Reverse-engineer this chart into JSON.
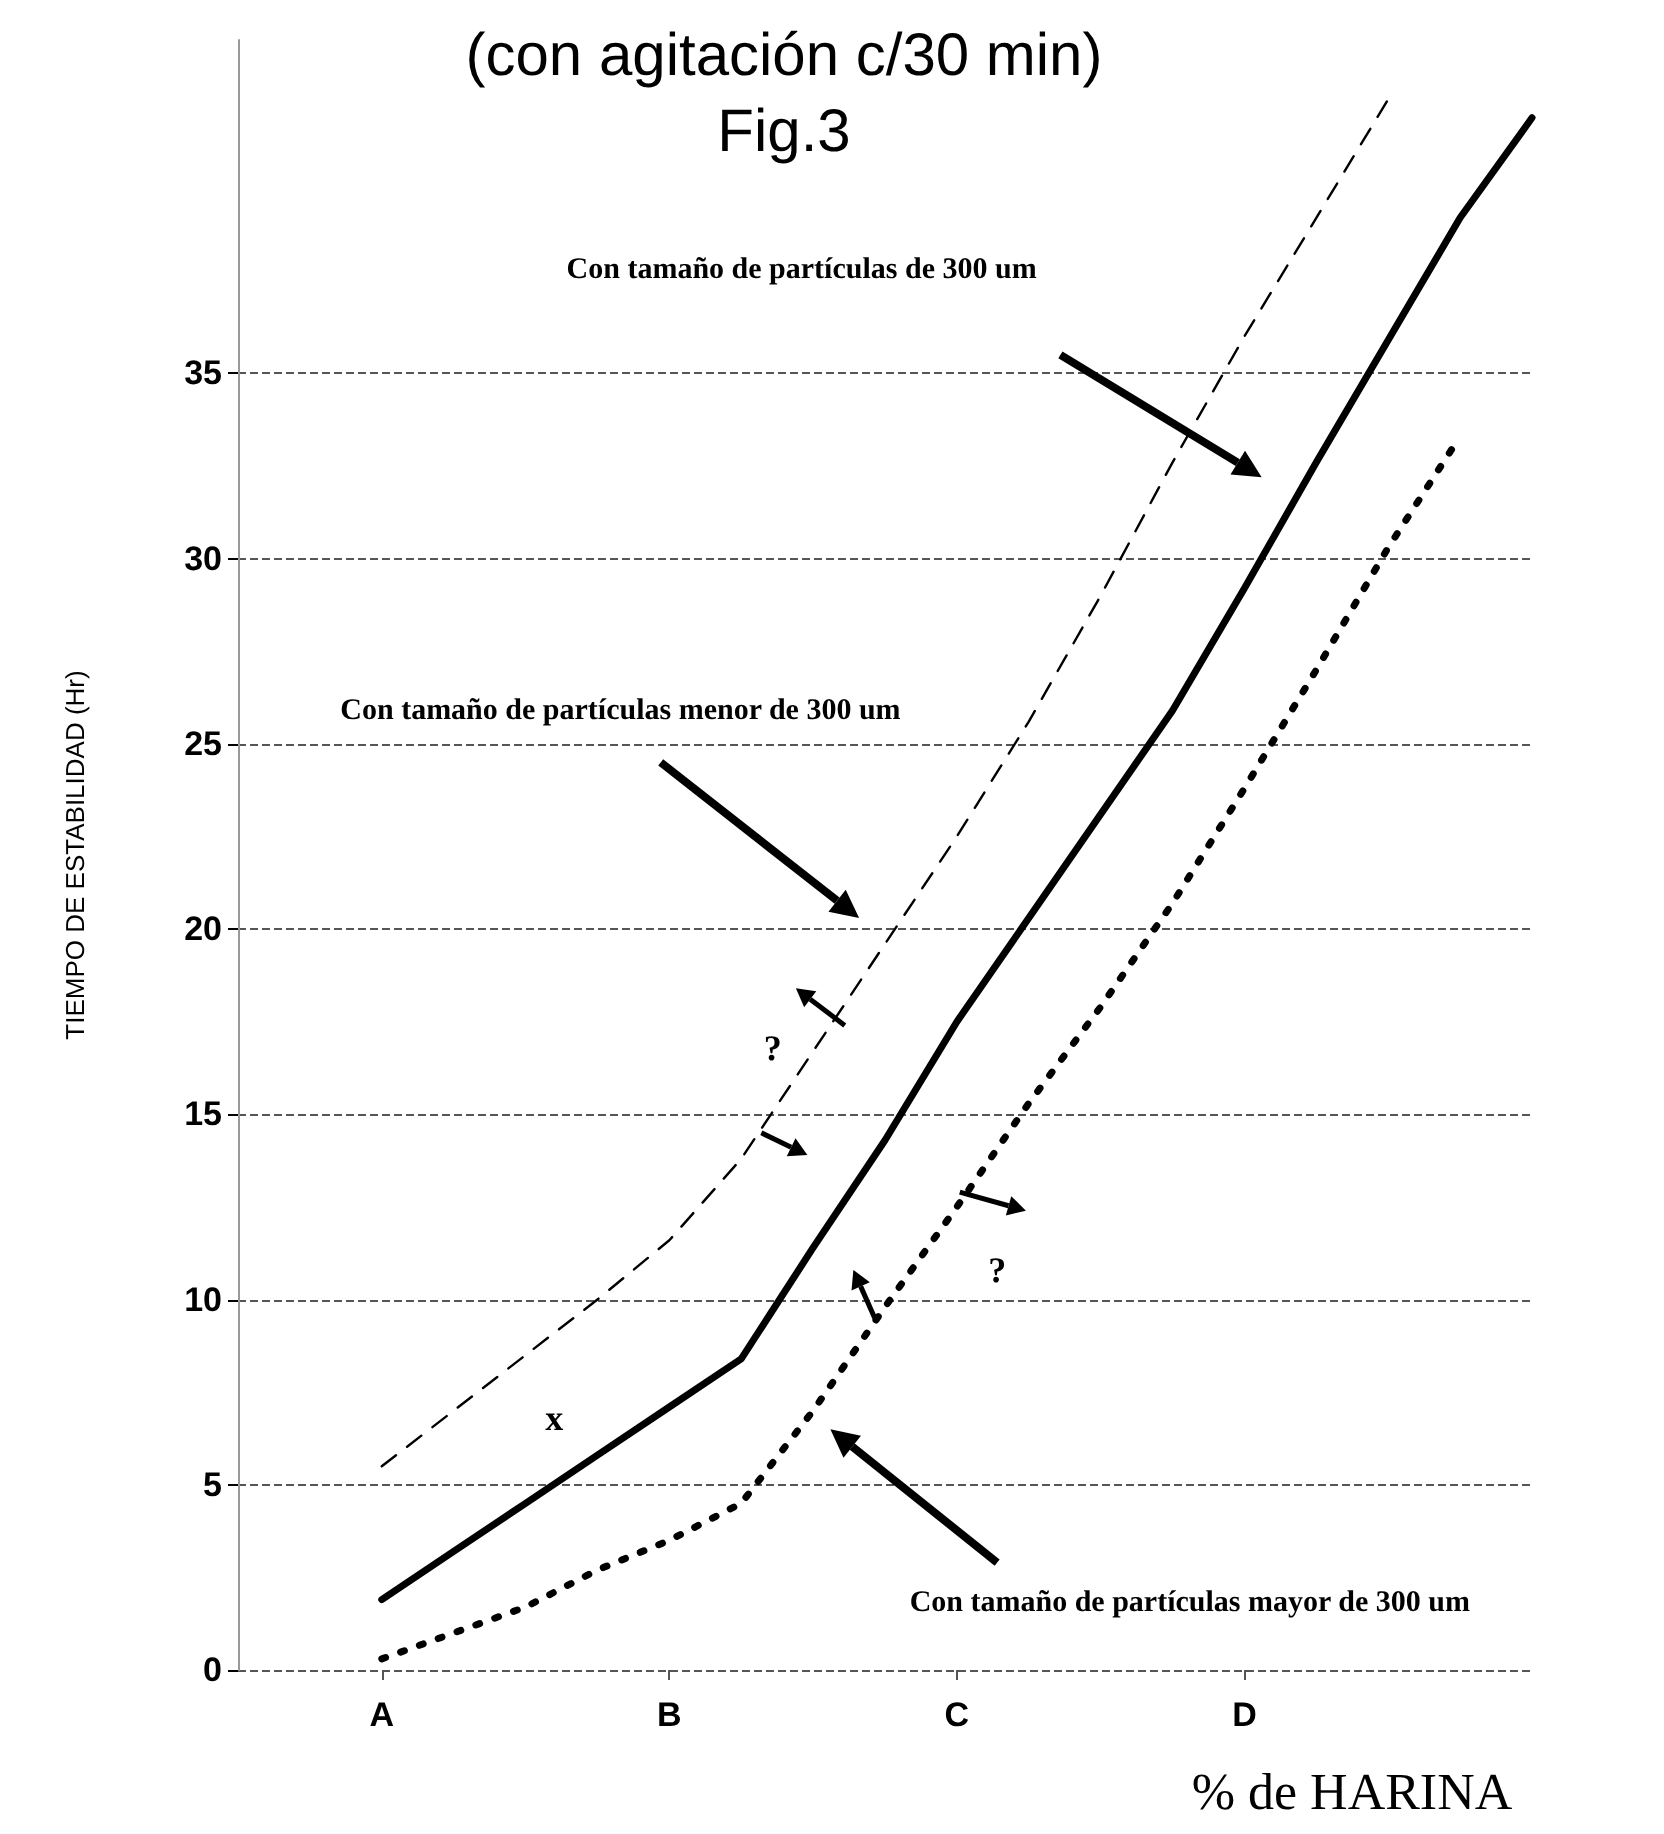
{
  "chart_data": {
    "type": "line",
    "title": "(con agitación c/30 min)",
    "subtitle": "Fig.3",
    "xlabel": "% de HARINA",
    "ylabel": "TIEMPO DE ESTABILIDAD (Hr)",
    "categories": [
      null,
      null,
      "A",
      null,
      null,
      null,
      "B",
      null,
      null,
      null,
      "C",
      null,
      null,
      null,
      "D",
      null,
      null,
      null,
      null
    ],
    "ylim": [
      0,
      44
    ],
    "yticks": [
      0,
      5,
      10,
      15,
      20,
      25,
      30,
      35
    ],
    "grid": "y",
    "marker": "none",
    "series": [
      {
        "color": "#000000",
        "line_style": "solid",
        "values": [
          null,
          null,
          1.9,
          3.2,
          4.5,
          5.8,
          7.1,
          8.4,
          11.4,
          14.3,
          17.5,
          20.3,
          23.1,
          25.9,
          29.2,
          32.6,
          35.9,
          39.2,
          41.9
        ]
      },
      {
        "color": "#000000",
        "line_style": "dashed",
        "values": [
          null,
          null,
          5.5,
          7.0,
          8.5,
          10.0,
          11.6,
          13.8,
          16.7,
          19.6,
          22.5,
          25.6,
          29.0,
          32.6,
          36.0,
          39.2,
          42.4,
          null,
          null
        ]
      },
      {
        "color": "#000000",
        "line_style": "dotted",
        "values": [
          null,
          null,
          0.3,
          1.0,
          1.7,
          2.7,
          3.5,
          4.5,
          7.0,
          9.8,
          12.5,
          15.3,
          17.9,
          20.7,
          23.8,
          27.0,
          30.3,
          33.3,
          null
        ]
      }
    ],
    "annotations": [
      "Con tamaño de partículas de 300 um",
      "Con tamaño de partículas menor de 300 um",
      "Con tamaño de partículas mayor de 300 um",
      "?",
      "?",
      "x"
    ]
  }
}
